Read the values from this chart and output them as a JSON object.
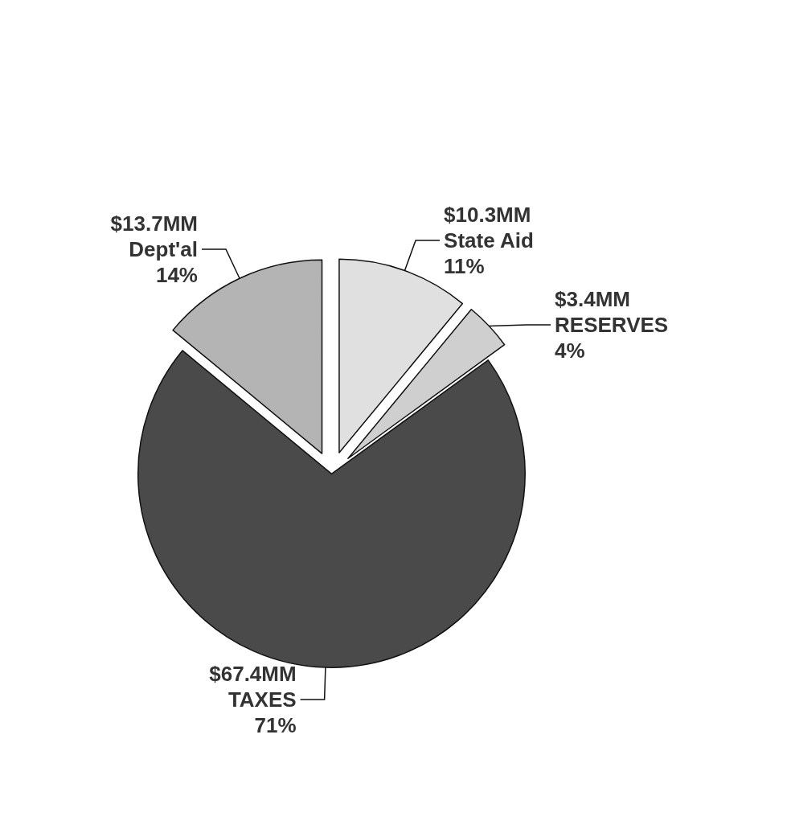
{
  "chart_data": {
    "type": "pie",
    "categories": [
      "$10.3MM\nState Aid",
      "$3.4MM\nRESERVES",
      "$67.4MM\nTAXES",
      "$13.7MM\nDept'al"
    ],
    "values": [
      11,
      4,
      71,
      14
    ],
    "value_labels": [
      "11%",
      "4%",
      "71%",
      "14%"
    ],
    "colors": [
      "#e0e0e0",
      "#cfcfcf",
      "#4a4a4a",
      "#b4b4b4"
    ],
    "legend": false
  }
}
